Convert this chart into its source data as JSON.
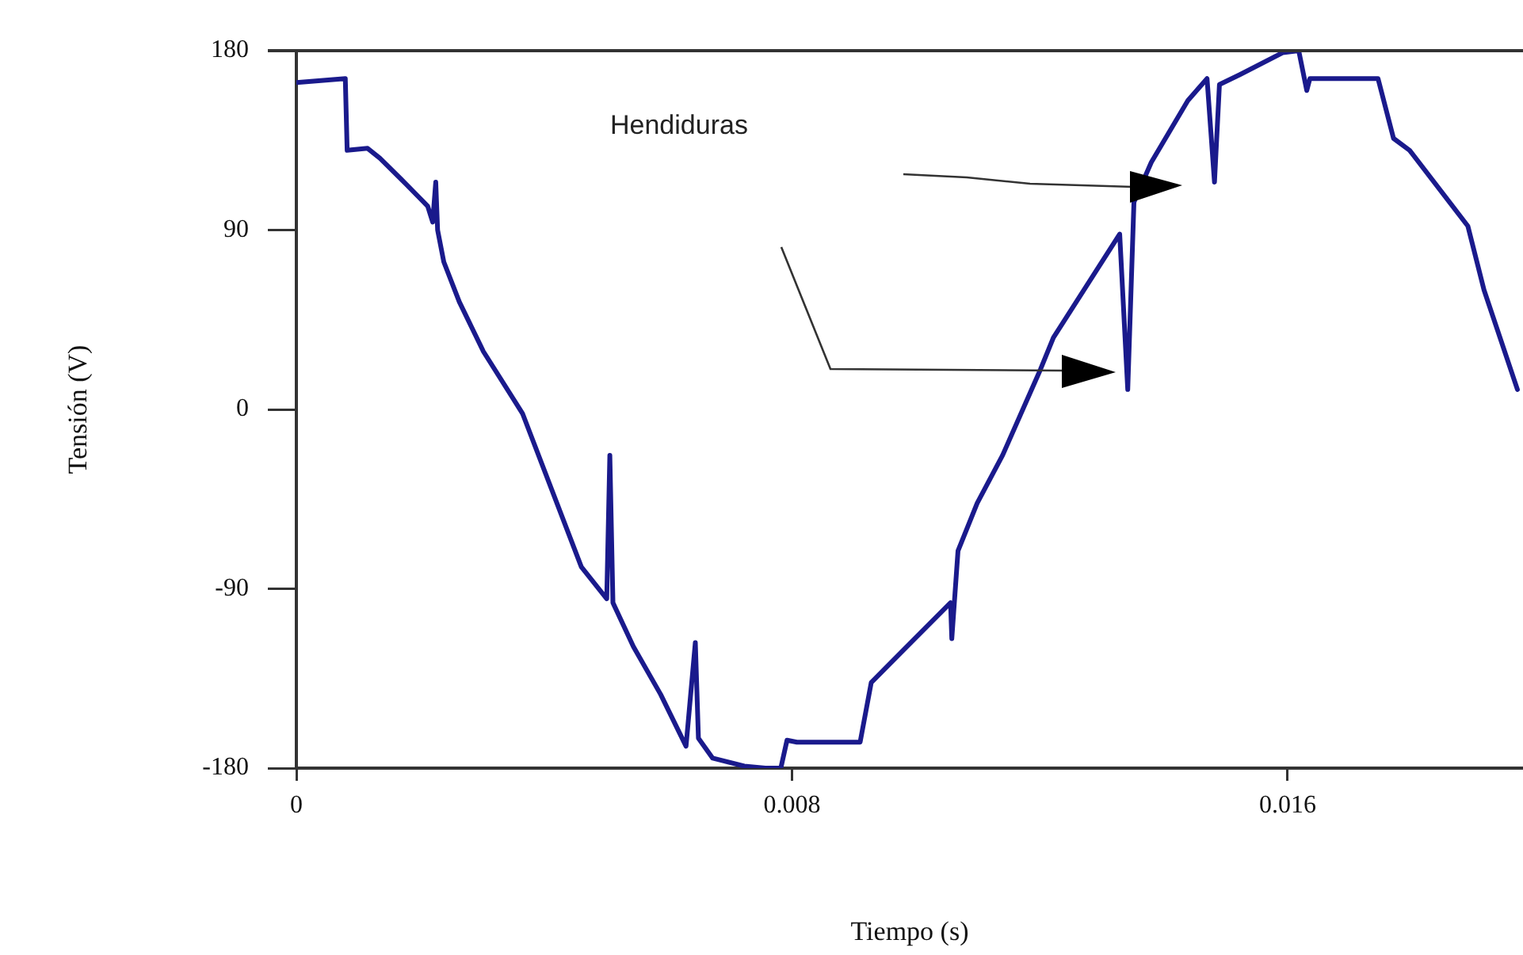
{
  "chart_data": {
    "type": "line",
    "xlabel": "Tiempo (s)",
    "ylabel": "Tensión (V)",
    "x": [
      0,
      0.00079,
      0.00082,
      0.00115,
      0.00135,
      0.00174,
      0.00212,
      0.0022,
      0.00225,
      0.00228,
      0.00238,
      0.00263,
      0.00302,
      0.00365,
      0.0046,
      0.00501,
      0.00506,
      0.00511,
      0.00544,
      0.00588,
      0.00629,
      0.00644,
      0.00649,
      0.00672,
      0.00723,
      0.00757,
      0.00782,
      0.00792,
      0.00808,
      0.0091,
      0.00928,
      0.00979,
      0.01056,
      0.01058,
      0.01068,
      0.01099,
      0.0114,
      0.01201,
      0.01222,
      0.01329,
      0.01342,
      0.01352,
      0.0138,
      0.01439,
      0.0147,
      0.01482,
      0.0149,
      0.01523,
      0.01592,
      0.01618,
      0.01631,
      0.01636,
      0.01746,
      0.01771,
      0.01797,
      0.01891,
      0.01917,
      0.01971
    ],
    "series": [
      {
        "color": "#1a1a8c",
        "values": [
          164,
          166,
          130,
          131,
          126,
          114,
          102,
          94,
          114,
          90,
          74,
          54,
          29,
          -2,
          -79,
          -95,
          -23,
          -97,
          -119,
          -143,
          -169,
          -117,
          -165,
          -175,
          -179,
          -180,
          -180,
          -166,
          -167,
          -167,
          -137,
          -121,
          -97,
          -115,
          -71,
          -47,
          -23,
          20,
          36,
          88,
          10,
          104,
          124,
          155,
          166,
          114,
          163,
          168,
          179,
          180,
          160,
          166,
          166,
          136,
          130,
          92,
          60,
          10
        ]
      }
    ],
    "xlim": [
      0,
      0.0198
    ],
    "xticks": [
      0,
      0.008,
      0.016
    ],
    "ylim": [
      -180,
      180
    ],
    "yticks": [
      180,
      90,
      0,
      -90,
      -180
    ],
    "grid": false,
    "legend": false,
    "marker": "none",
    "line_style": "solid",
    "annotations": [
      "Hendiduras"
    ]
  }
}
